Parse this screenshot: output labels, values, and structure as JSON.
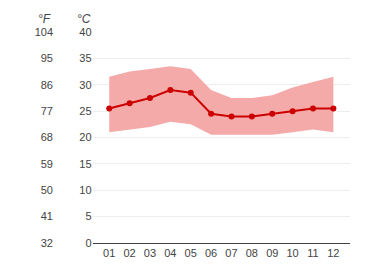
{
  "chart_data": {
    "type": "line",
    "categories": [
      "01",
      "02",
      "03",
      "04",
      "05",
      "06",
      "07",
      "08",
      "09",
      "10",
      "11",
      "12"
    ],
    "series": [
      {
        "type": "area",
        "color": "#f5aaaa",
        "values": [
          31.5,
          32.5,
          33.0,
          33.5,
          33.0,
          29.0,
          27.5,
          27.5,
          28.0,
          29.5,
          30.5,
          31.5
        ],
        "lower": [
          21.0,
          21.5,
          22.0,
          23.0,
          22.5,
          20.5,
          20.5,
          20.5,
          20.5,
          21.0,
          21.5,
          21.0
        ]
      },
      {
        "type": "line",
        "color": "#cc0000",
        "marker": "circle",
        "values": [
          25.5,
          26.5,
          27.5,
          29.0,
          28.5,
          24.5,
          24.0,
          24.0,
          24.5,
          25.0,
          25.5,
          25.5
        ]
      }
    ],
    "ylim": [
      0,
      40
    ],
    "yticks": [
      0,
      5,
      10,
      15,
      20,
      25,
      30,
      35,
      40
    ],
    "ylabel": "°C",
    "y2lim": [
      32,
      104
    ],
    "y2ticks": [
      32,
      41,
      50,
      59,
      68,
      77,
      86,
      95,
      104
    ],
    "y2label": "°F",
    "grid": true
  }
}
